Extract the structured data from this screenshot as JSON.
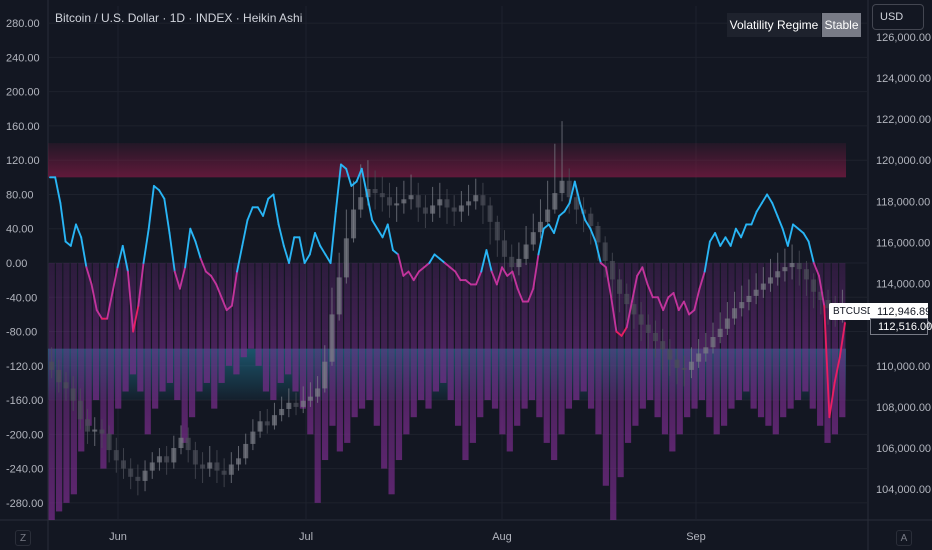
{
  "header": {
    "title": "Bitcoin / U.S. Dollar · 1D · INDEX · Heikin Ashi",
    "currency": "USD",
    "legend_label": "Volatility Regime",
    "legend_value": "Stable",
    "left_corner": "Z",
    "right_corner": "A"
  },
  "price_labels": {
    "symbol": "BTCUSD",
    "last_price": "112,946.89",
    "close_price": "112,516.00"
  },
  "colors": {
    "background": "#131722",
    "grid": "#1e222d",
    "line_cyan": "#29b6f6",
    "line_magenta": "#c2349c",
    "line_red": "#e91e63",
    "high_zone": "#7a1a42",
    "low_zone": "#1f6f8b",
    "columns": "#7b2c8e",
    "candles": "#5d606b"
  },
  "chart_data": {
    "type": "line",
    "left_axis": {
      "ticks": [
        "280.00",
        "240.00",
        "200.00",
        "160.00",
        "120.00",
        "80.00",
        "40.00",
        "0.00",
        "-40.00",
        "-80.00",
        "-120.00",
        "-160.00",
        "-200.00",
        "-240.00",
        "-280.00"
      ],
      "range": [
        -300,
        300
      ]
    },
    "right_axis": {
      "ticks": [
        "126,000.00",
        "124,000.00",
        "122,000.00",
        "120,000.00",
        "118,000.00",
        "116,000.00",
        "114,000.00",
        "112,000.00",
        "110,000.00",
        "108,000.00",
        "106,000.00",
        "104,000.00"
      ],
      "range": [
        102500,
        127500
      ]
    },
    "x_axis": {
      "ticks": [
        "Jun",
        "Jul",
        "Aug",
        "Sep"
      ]
    },
    "zones": {
      "upper": [
        100,
        140
      ],
      "lower": [
        -100,
        -160
      ]
    },
    "series": [
      {
        "values": [
          100,
          100,
          70,
          25,
          20,
          45,
          30,
          -5,
          -25,
          -55,
          -65,
          -65,
          -35,
          -5,
          20,
          -10,
          -80,
          -50,
          0,
          40,
          90,
          85,
          75,
          35,
          -10,
          -30,
          -5,
          40,
          25,
          5,
          -10,
          -15,
          -25,
          -40,
          -55,
          -50,
          -10,
          20,
          50,
          65,
          65,
          55,
          75,
          80,
          45,
          20,
          0,
          30,
          30,
          0,
          10,
          35,
          20,
          10,
          0,
          60,
          115,
          110,
          90,
          95,
          110,
          80,
          50,
          40,
          30,
          45,
          15,
          10,
          -15,
          -10,
          -20,
          -10,
          -5,
          0,
          10,
          5,
          0,
          -5,
          -10,
          -20,
          -20,
          -25,
          -25,
          -10,
          15,
          -10,
          -25,
          -5,
          -15,
          -10,
          -30,
          -45,
          -45,
          -30,
          10,
          40,
          45,
          35,
          55,
          60,
          70,
          95,
          70,
          50,
          40,
          25,
          0,
          -5,
          -40,
          -80,
          -85,
          -75,
          -45,
          -15,
          -5,
          -25,
          -40,
          -40,
          -55,
          -40,
          -35,
          -55,
          -45,
          -60,
          -55,
          -30,
          -10,
          25,
          35,
          20,
          30,
          20,
          40,
          30,
          45,
          45,
          60,
          70,
          80,
          70,
          55,
          40,
          20,
          45,
          40,
          35,
          25,
          0,
          -15,
          -50,
          -180,
          -140,
          -110,
          -70
        ],
        "candles": [
          [
            110200,
            109800,
            110900,
            109400
          ],
          [
            109800,
            109200,
            110300,
            108700
          ],
          [
            109200,
            108900,
            109700,
            108300
          ],
          [
            108900,
            108300,
            109500,
            107800
          ],
          [
            108300,
            107400,
            108900,
            106900
          ],
          [
            107400,
            106800,
            107900,
            106200
          ],
          [
            106800,
            106900,
            107500,
            106100
          ],
          [
            106900,
            106700,
            107400,
            106000
          ],
          [
            106700,
            105900,
            107100,
            105300
          ],
          [
            105900,
            105400,
            106500,
            104800
          ],
          [
            105400,
            105000,
            106000,
            104500
          ],
          [
            105000,
            104600,
            105500,
            104000
          ],
          [
            104600,
            104400,
            105200,
            103700
          ],
          [
            104400,
            104900,
            105400,
            103900
          ],
          [
            104900,
            105300,
            105800,
            104500
          ],
          [
            105300,
            105600,
            106000,
            104900
          ],
          [
            105600,
            105300,
            106100,
            104700
          ],
          [
            105300,
            106000,
            106600,
            105000
          ],
          [
            106000,
            106500,
            107100,
            105700
          ],
          [
            106500,
            105900,
            107000,
            105300
          ],
          [
            105900,
            105200,
            106300,
            104500
          ],
          [
            105200,
            105000,
            105800,
            104300
          ],
          [
            105000,
            105300,
            106100,
            104600
          ],
          [
            105300,
            104900,
            105900,
            104300
          ],
          [
            104900,
            104700,
            105500,
            104100
          ],
          [
            104700,
            105200,
            105800,
            104300
          ],
          [
            105200,
            105500,
            106100,
            104900
          ],
          [
            105500,
            106200,
            106700,
            105200
          ],
          [
            106200,
            106800,
            107400,
            105900
          ],
          [
            106800,
            107300,
            107800,
            106500
          ],
          [
            107300,
            107100,
            107900,
            106700
          ],
          [
            107100,
            107600,
            108200,
            106900
          ],
          [
            107600,
            107900,
            108500,
            107300
          ],
          [
            107900,
            108200,
            108900,
            107500
          ],
          [
            108200,
            108000,
            108700,
            107600
          ],
          [
            108000,
            108300,
            109000,
            107700
          ],
          [
            108300,
            108500,
            109200,
            108000
          ],
          [
            108500,
            108900,
            109500,
            108200
          ],
          [
            108900,
            110200,
            111000,
            108700
          ],
          [
            110200,
            112500,
            113800,
            110000
          ],
          [
            112500,
            114300,
            115500,
            112200
          ],
          [
            114300,
            116200,
            117600,
            114000
          ],
          [
            116200,
            117600,
            119000,
            116000
          ],
          [
            117600,
            118200,
            119800,
            117200
          ],
          [
            118200,
            118600,
            120000,
            117800
          ],
          [
            118600,
            118400,
            119500,
            117600
          ],
          [
            118400,
            118200,
            119200,
            117500
          ],
          [
            118200,
            117800,
            118900,
            117200
          ],
          [
            117800,
            117900,
            118700,
            117000
          ],
          [
            117900,
            118100,
            119000,
            117400
          ],
          [
            118100,
            118300,
            119300,
            117600
          ],
          [
            118300,
            117700,
            118900,
            117000
          ],
          [
            117700,
            117400,
            118300,
            116700
          ],
          [
            117400,
            117800,
            118700,
            117000
          ],
          [
            117800,
            118100,
            118900,
            117200
          ],
          [
            118100,
            117700,
            118600,
            116900
          ],
          [
            117700,
            117500,
            118300,
            116800
          ],
          [
            117500,
            117800,
            118500,
            117000
          ],
          [
            117800,
            118000,
            118800,
            117300
          ],
          [
            118000,
            118300,
            119100,
            117600
          ],
          [
            118300,
            117800,
            118900,
            116900
          ],
          [
            117800,
            117000,
            118200,
            115900
          ],
          [
            117000,
            116100,
            117300,
            115300
          ],
          [
            116100,
            115300,
            116600,
            114600
          ],
          [
            115300,
            114800,
            115900,
            114100
          ],
          [
            114800,
            115200,
            116000,
            114400
          ],
          [
            115200,
            115900,
            116800,
            114900
          ],
          [
            115900,
            116500,
            117400,
            115600
          ],
          [
            116500,
            117000,
            118100,
            116200
          ],
          [
            117000,
            117600,
            119000,
            116800
          ],
          [
            117600,
            118400,
            120800,
            117400
          ],
          [
            118400,
            119000,
            121900,
            118000
          ],
          [
            119000,
            118200,
            119600,
            117400
          ],
          [
            118200,
            117600,
            118700,
            116900
          ],
          [
            117600,
            117400,
            118200,
            116500
          ],
          [
            117400,
            116800,
            117700,
            115900
          ],
          [
            116800,
            116000,
            117000,
            115100
          ],
          [
            116000,
            115100,
            116300,
            114300
          ],
          [
            115100,
            114200,
            115500,
            113300
          ],
          [
            114200,
            113500,
            114700,
            112600
          ],
          [
            113500,
            113000,
            114000,
            112200
          ],
          [
            113000,
            112500,
            113600,
            111800
          ],
          [
            112500,
            112000,
            113100,
            111200
          ],
          [
            112000,
            111600,
            112500,
            110800
          ],
          [
            111600,
            111200,
            112200,
            110400
          ],
          [
            111200,
            110800,
            111800,
            109800
          ],
          [
            110800,
            110300,
            111300,
            109500
          ],
          [
            110300,
            109900,
            110800,
            109100
          ],
          [
            109900,
            109800,
            110500,
            109000
          ],
          [
            109800,
            110200,
            110900,
            109400
          ],
          [
            110200,
            110600,
            111300,
            109900
          ],
          [
            110600,
            110900,
            111600,
            110200
          ],
          [
            110900,
            111400,
            112100,
            110600
          ],
          [
            111400,
            111800,
            112600,
            111100
          ],
          [
            111800,
            112300,
            113100,
            111500
          ],
          [
            112300,
            112800,
            113600,
            112000
          ],
          [
            112800,
            113100,
            113900,
            112400
          ],
          [
            113100,
            113400,
            114200,
            112700
          ],
          [
            113400,
            113700,
            114500,
            113000
          ],
          [
            113700,
            114000,
            114800,
            113300
          ],
          [
            114000,
            114300,
            115200,
            113600
          ],
          [
            114300,
            114600,
            115500,
            113900
          ],
          [
            114600,
            114800,
            115700,
            114100
          ],
          [
            114800,
            115000,
            115900,
            114200
          ],
          [
            115000,
            114700,
            115600,
            113900
          ],
          [
            114700,
            114200,
            115100,
            113400
          ],
          [
            114200,
            113600,
            114500,
            112800
          ],
          [
            113600,
            113200,
            114000,
            112500
          ],
          [
            113200,
            112800,
            113700,
            112000
          ],
          [
            112800,
            112600,
            113400,
            111900
          ],
          [
            112600,
            112900,
            113700,
            112100
          ]
        ],
        "columns": [
          -300,
          -290,
          -280,
          -270,
          -220,
          -190,
          -160,
          -240,
          -200,
          -170,
          -150,
          -130,
          -150,
          -200,
          -170,
          -150,
          -140,
          -160,
          -210,
          -180,
          -150,
          -140,
          -170,
          -140,
          -120,
          -130,
          -110,
          -100,
          -120,
          -150,
          -160,
          -140,
          -130,
          -150,
          -170,
          -200,
          -280,
          -230,
          -190,
          -220,
          -210,
          -180,
          -170,
          -160,
          -190,
          -240,
          -270,
          -230,
          -200,
          -180,
          -160,
          -170,
          -150,
          -140,
          -160,
          -190,
          -230,
          -210,
          -180,
          -160,
          -170,
          -200,
          -220,
          -190,
          -170,
          -160,
          -180,
          -210,
          -230,
          -200,
          -170,
          -160,
          -150,
          -170,
          -200,
          -260,
          -300,
          -250,
          -210,
          -190,
          -170,
          -160,
          -180,
          -200,
          -220,
          -200,
          -180,
          -170,
          -160,
          -180,
          -200,
          -190,
          -170,
          -160,
          -150,
          -170,
          -180,
          -190,
          -200,
          -180,
          -170,
          -160,
          -150,
          -170,
          -190,
          -210,
          -200,
          -180
        ]
      }
    ]
  }
}
